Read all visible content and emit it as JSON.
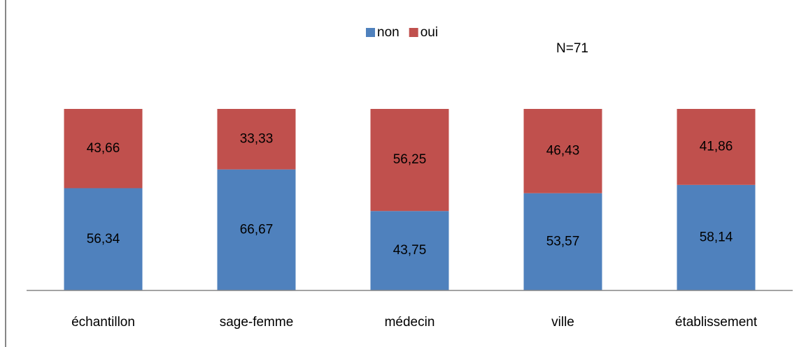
{
  "chart_data": {
    "type": "stacked_bar",
    "categories": [
      "échantillon",
      "sage-femme",
      "médecin",
      "ville",
      "établissement"
    ],
    "series": [
      {
        "name": "non",
        "color": "#4f81bd",
        "values": [
          56.34,
          66.67,
          43.75,
          53.57,
          58.14
        ],
        "value_labels": [
          "56,34",
          "66,67",
          "43,75",
          "53,57",
          "58,14"
        ]
      },
      {
        "name": "oui",
        "color": "#c0504d",
        "values": [
          43.66,
          33.33,
          56.25,
          46.43,
          41.86
        ],
        "value_labels": [
          "43,66",
          "33,33",
          "56,25",
          "46,43",
          "41,86"
        ]
      }
    ],
    "ylim": [
      0,
      100
    ],
    "legend": "top",
    "annotation": "N=71"
  }
}
